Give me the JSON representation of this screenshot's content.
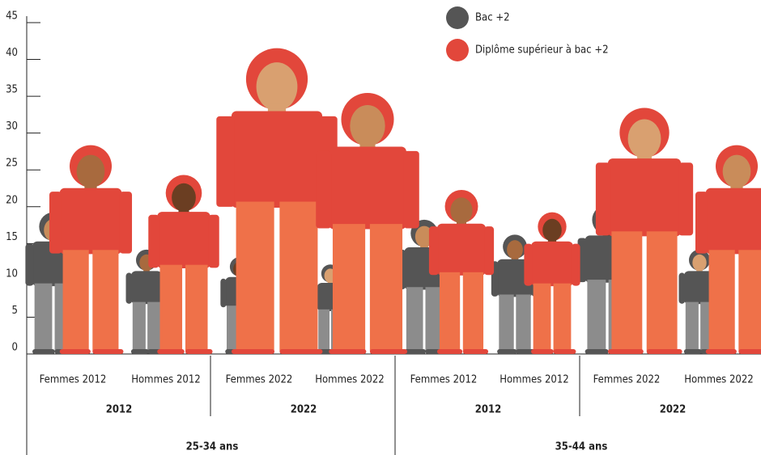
{
  "chart_data": {
    "type": "pictogram",
    "categories": [
      "Femmes 2012",
      "Hommes 2012",
      "Femmes 2022",
      "Hommes 2022",
      "Femmes 2012",
      "Hommes 2012",
      "Femmes 2022",
      "Hommes 2022"
    ],
    "group_labels": [
      "2012",
      "2022",
      "2012",
      "2022"
    ],
    "super_group_labels": [
      "25-34 ans",
      "35-44 ans"
    ],
    "series": [
      {
        "name": "Bac +2",
        "color": "#555555",
        "values": [
          19,
          14,
          13,
          12,
          18,
          16,
          20,
          14
        ]
      },
      {
        "name": "Diplôme supérieur à bac +2",
        "color": "#e2473b",
        "values": [
          28,
          24,
          41,
          35,
          22,
          19,
          33,
          28
        ]
      }
    ],
    "ylim": [
      0,
      45
    ],
    "yticks": [
      0,
      5,
      10,
      15,
      20,
      25,
      30,
      35,
      40,
      45
    ]
  }
}
